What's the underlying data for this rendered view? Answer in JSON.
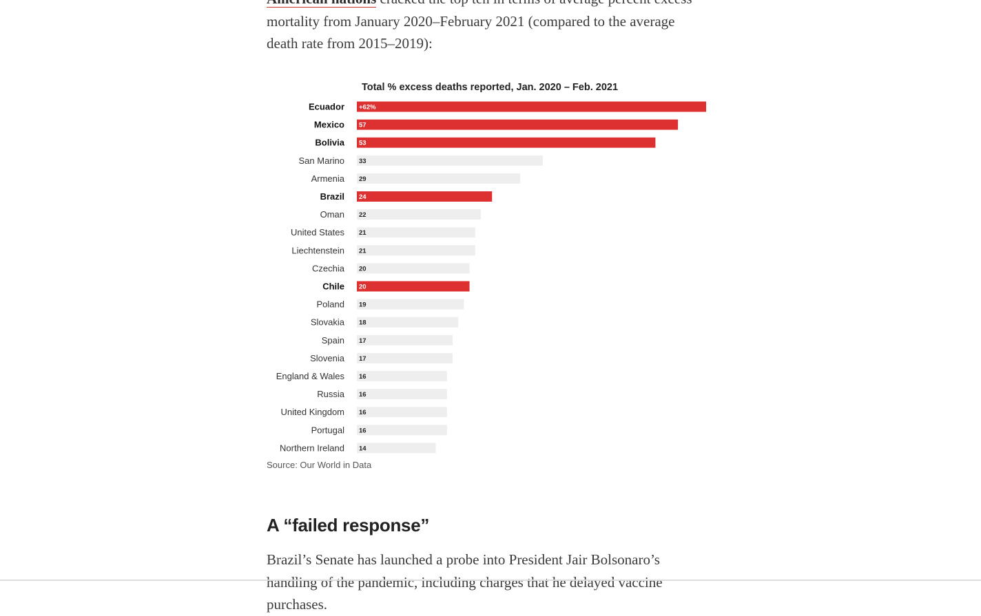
{
  "intro": {
    "link_text": "American nations",
    "text_after_link": " cracked the top ten in terms of average percent excess mortality from January 2020–February 2021 (compared to the average death rate from 2015–2019):"
  },
  "chart_data": {
    "type": "bar",
    "orientation": "horizontal",
    "title": "Total % excess deaths reported, Jan. 2020 – Feb. 2021",
    "categories": [
      "Ecuador",
      "Mexico",
      "Bolivia",
      "San Marino",
      "Armenia",
      "Brazil",
      "Oman",
      "United States",
      "Liechtenstein",
      "Czechia",
      "Chile",
      "Poland",
      "Slovakia",
      "Spain",
      "Slovenia",
      "England & Wales",
      "Russia",
      "United Kingdom",
      "Portugal",
      "Northern Ireland"
    ],
    "values": [
      62,
      57,
      53,
      33,
      29,
      24,
      22,
      21,
      21,
      20,
      20,
      19,
      18,
      17,
      17,
      16,
      16,
      16,
      16,
      14
    ],
    "value_labels": [
      "+62%",
      "57",
      "53",
      "33",
      "29",
      "24",
      "22",
      "21",
      "21",
      "20",
      "20",
      "19",
      "18",
      "17",
      "17",
      "16",
      "16",
      "16",
      "16",
      "14"
    ],
    "highlighted": [
      "Ecuador",
      "Mexico",
      "Bolivia",
      "Brazil",
      "Chile"
    ],
    "highlight_color": "#dc3130",
    "base_color": "#eeeeee",
    "xlim": [
      0,
      62
    ],
    "source": "Source: Our World in Data"
  },
  "section": {
    "heading": "A “failed response”",
    "paragraph": "Brazil’s Senate has launched a probe into President Jair Bolsonaro’s handling of the pandemic, including charges that he delayed vaccine purchases."
  }
}
